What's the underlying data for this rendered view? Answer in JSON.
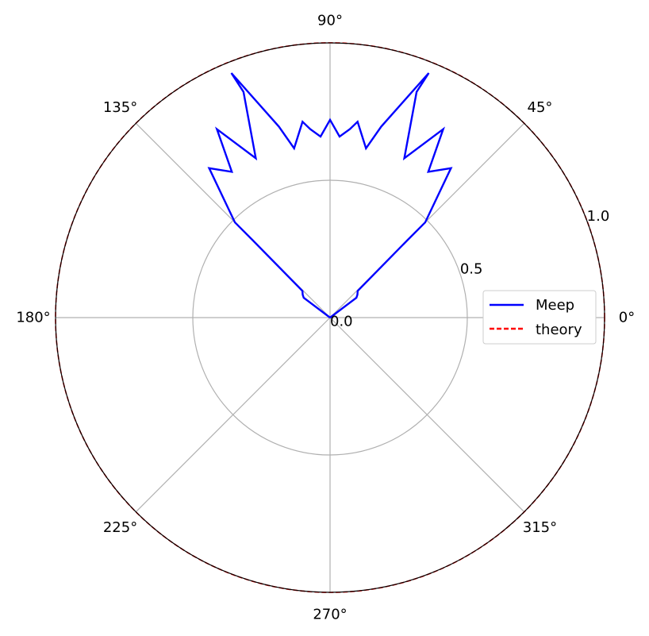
{
  "chart_data": {
    "type": "polar-line",
    "angle_unit": "degrees",
    "rlim": [
      0,
      1
    ],
    "grid": true,
    "angle_ticks": [
      {
        "deg": 0,
        "label": "0°"
      },
      {
        "deg": 45,
        "label": "45°"
      },
      {
        "deg": 90,
        "label": "90°"
      },
      {
        "deg": 135,
        "label": "135°"
      },
      {
        "deg": 180,
        "label": "180°"
      },
      {
        "deg": 225,
        "label": "225°"
      },
      {
        "deg": 270,
        "label": "270°"
      },
      {
        "deg": 315,
        "label": "315°"
      }
    ],
    "radial_ticks": [
      {
        "value": 0.0,
        "label": "0.0"
      },
      {
        "value": 0.5,
        "label": "0.5"
      },
      {
        "value": 1.0,
        "label": "1.0"
      }
    ],
    "legend": {
      "position": "right",
      "entries": [
        {
          "label": "Meep",
          "color": "#0000ff",
          "style": "solid"
        },
        {
          "label": "theory",
          "color": "#ff0000",
          "style": "dashed"
        }
      ]
    },
    "series": [
      {
        "name": "Meep",
        "color": "#0000ff",
        "style": "solid",
        "points": [
          {
            "theta": 0,
            "r": 0.0
          },
          {
            "theta": 37,
            "r": 0.12
          },
          {
            "theta": 40,
            "r": 0.13
          },
          {
            "theta": 44,
            "r": 0.14
          },
          {
            "theta": 45,
            "r": 0.4
          },
          {
            "theta": 45,
            "r": 0.49
          },
          {
            "theta": 51,
            "r": 0.7
          },
          {
            "theta": 56,
            "r": 0.64
          },
          {
            "theta": 59,
            "r": 0.8
          },
          {
            "theta": 65,
            "r": 0.64
          },
          {
            "theta": 69,
            "r": 0.88
          },
          {
            "theta": 68,
            "r": 0.96
          },
          {
            "theta": 75,
            "r": 0.72
          },
          {
            "theta": 78,
            "r": 0.63
          },
          {
            "theta": 82,
            "r": 0.72
          },
          {
            "theta": 84,
            "r": 0.69
          },
          {
            "theta": 87,
            "r": 0.66
          },
          {
            "theta": 90,
            "r": 0.72
          },
          {
            "theta": 93,
            "r": 0.66
          },
          {
            "theta": 96,
            "r": 0.69
          },
          {
            "theta": 98,
            "r": 0.72
          },
          {
            "theta": 102,
            "r": 0.63
          },
          {
            "theta": 105,
            "r": 0.72
          },
          {
            "theta": 112,
            "r": 0.96
          },
          {
            "theta": 111,
            "r": 0.88
          },
          {
            "theta": 115,
            "r": 0.64
          },
          {
            "theta": 121,
            "r": 0.8
          },
          {
            "theta": 124,
            "r": 0.64
          },
          {
            "theta": 129,
            "r": 0.7
          },
          {
            "theta": 135,
            "r": 0.49
          },
          {
            "theta": 135,
            "r": 0.4
          },
          {
            "theta": 136,
            "r": 0.14
          },
          {
            "theta": 140,
            "r": 0.13
          },
          {
            "theta": 143,
            "r": 0.12
          },
          {
            "theta": 180,
            "r": 0.0
          }
        ]
      },
      {
        "name": "theory",
        "color": "#ff0000",
        "style": "dashed",
        "constant_r": 1.0,
        "theta_range": [
          0,
          360
        ]
      }
    ]
  }
}
